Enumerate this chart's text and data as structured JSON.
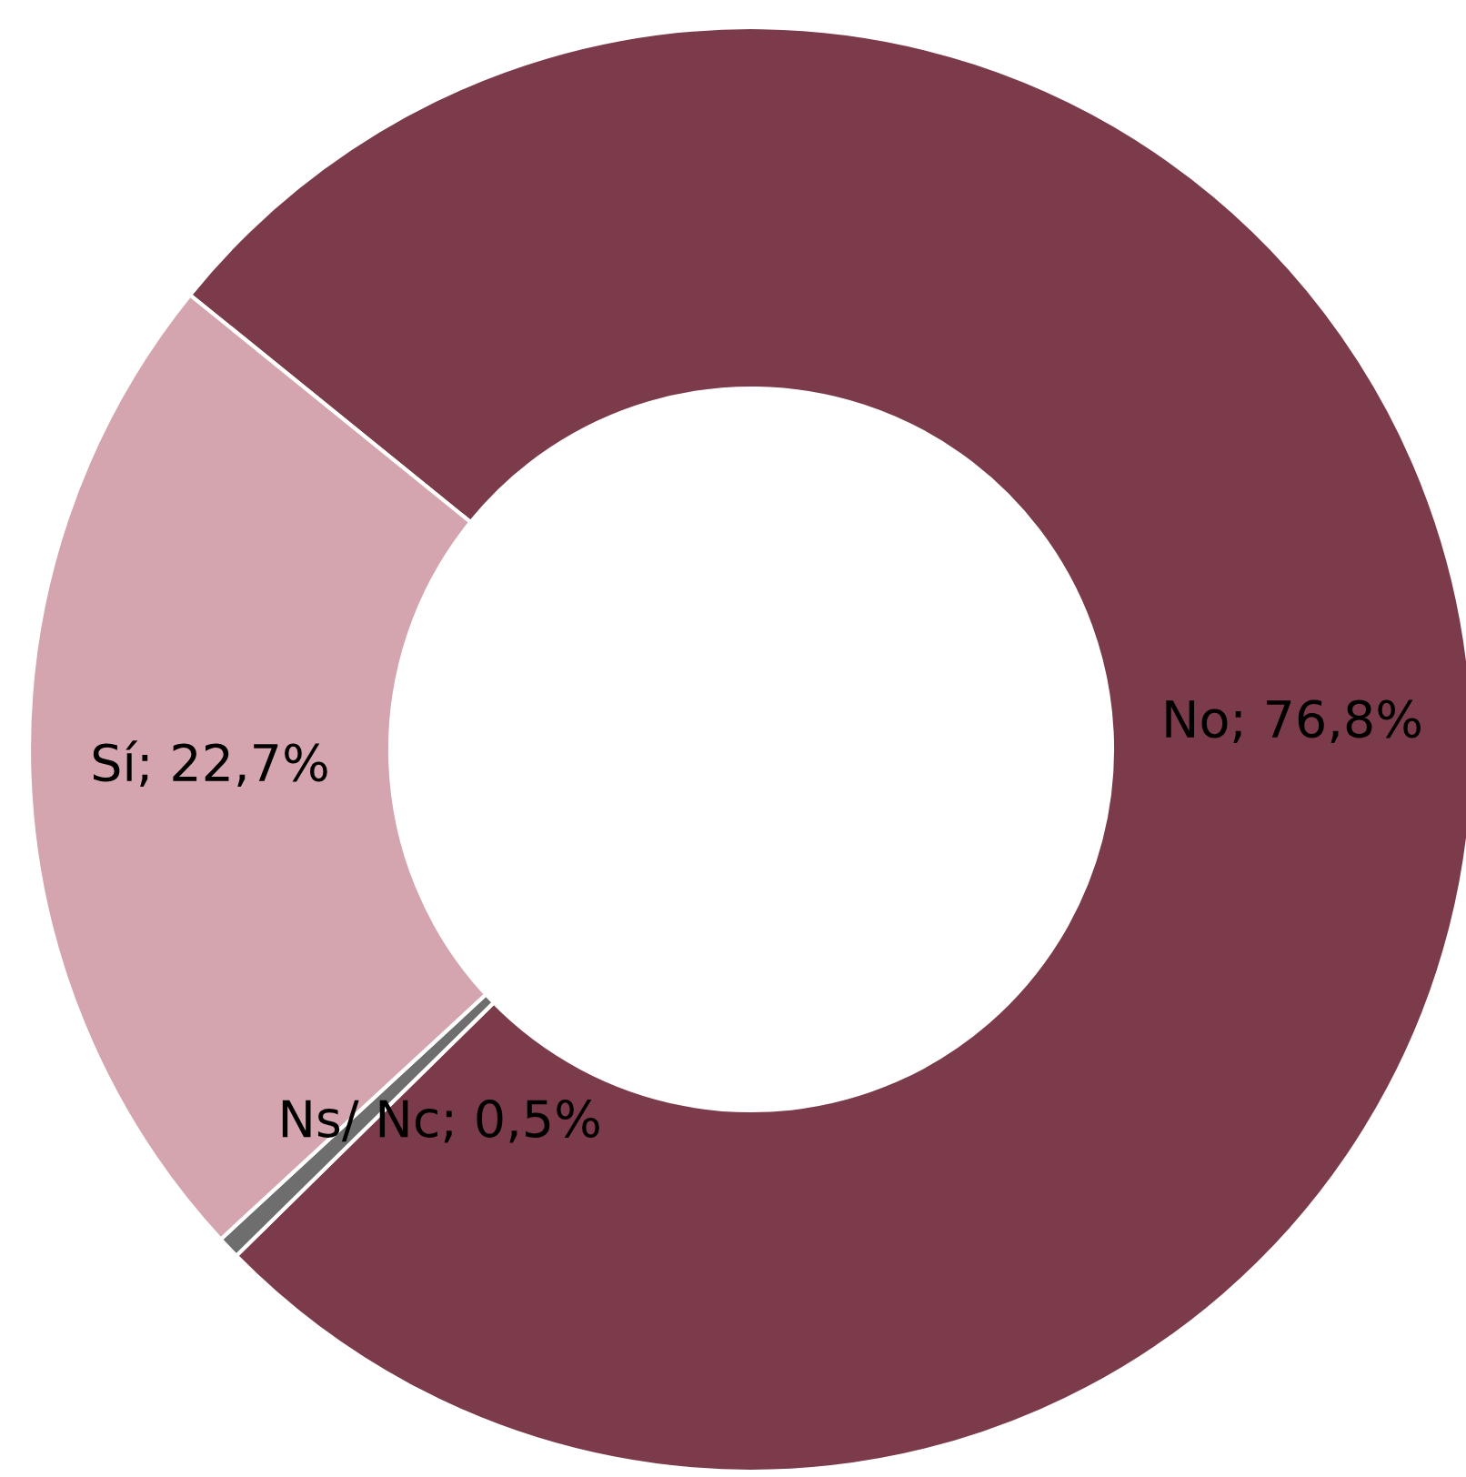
{
  "chart_data": {
    "type": "donut",
    "categories": [
      "No",
      "Ns/ Nc",
      "Sí"
    ],
    "values": [
      76.8,
      0.5,
      22.7
    ],
    "colors": [
      "#7b3b4a",
      "#6e6e6e",
      "#d4a5ae"
    ],
    "value_labels": [
      "; 76,8%",
      "; 0,5%",
      "; 22,7%"
    ],
    "legend": false
  }
}
